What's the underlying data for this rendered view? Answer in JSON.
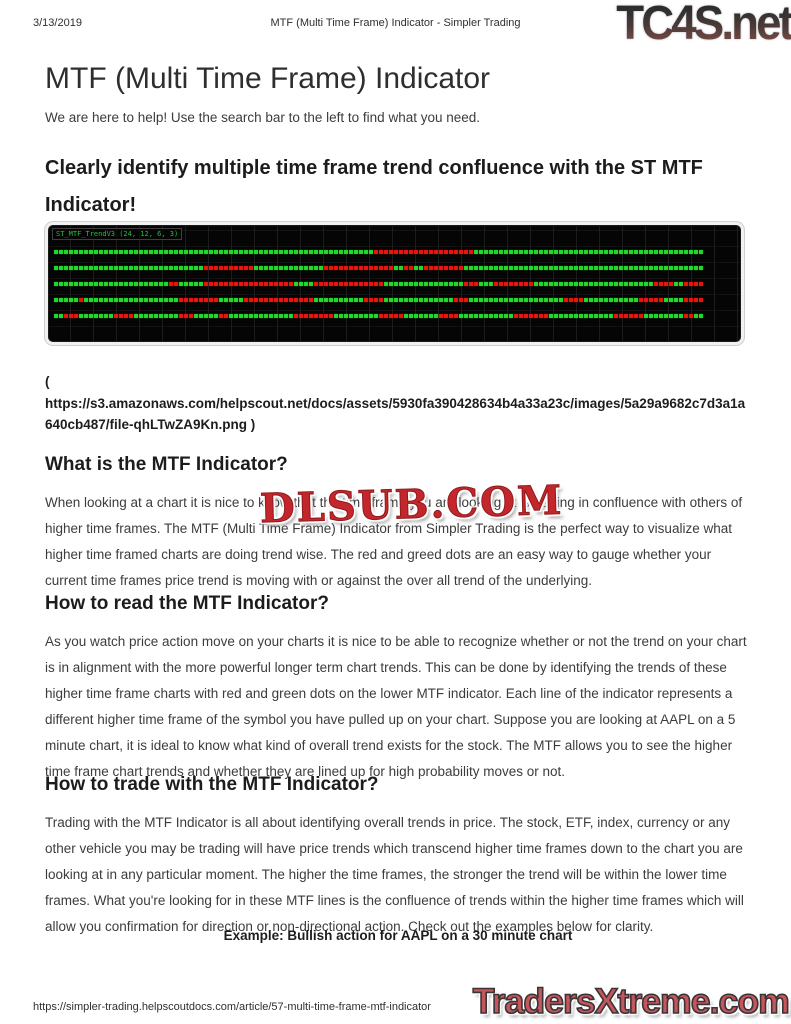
{
  "print_header": {
    "date": "3/13/2019",
    "doc_title": "MTF (Multi Time Frame) Indicator - Simpler Trading",
    "site_logo": "TC4S.net"
  },
  "article": {
    "title": "MTF (Multi Time Frame) Indicator",
    "intro": "We are here to help! Use the search bar to the left to find what you need.",
    "headline": "Clearly identify multiple time frame trend confluence with the ST MTF Indicator!",
    "image_link": {
      "line1": "(",
      "line2": "https://s3.amazonaws.com/helpscout.net/docs/assets/5930fa390428634b4a33a23c/images/5a29a9682c7d3a1a640cb487/file-qhLTwZA9Kn.png )"
    },
    "sections": [
      {
        "heading": "What is the MTF Indicator?",
        "body": "When looking at a chart it is nice to know that the time frame you are looking at is trading in confluence with others of higher time frames. The MTF (Multi Time Frame) Indicator from Simpler Trading is the perfect way to visualize what higher time framed charts are doing trend wise. The red and greed dots are an easy way to gauge whether your current time frames price trend is moving with or against the over all trend of the underlying."
      },
      {
        "heading": "How to read the MTF Indicator?",
        "body": "As you watch price action move on your charts it is nice to be able to recognize whether or not the trend on your chart is in alignment with the more powerful longer term chart trends. This can be done by identifying the trends of these higher time frame charts with red and green dots on the lower MTF indicator. Each line of the indicator represents a different higher time frame of the symbol you have pulled up on your chart. Suppose you are looking at AAPL on a 5 minute chart, it is ideal to know what kind of overall trend exists for the stock. The MTF allows you to see the higher time frame chart trends and whether they are lined up for high probability moves or not."
      },
      {
        "heading": "How to trade with the MTF Indicator?",
        "body": "Trading with the MTF Indicator is all about identifying overall trends in price. The stock, ETF, index, currency or any other vehicle you may be trading will have price trends which transcend higher time frames down to the chart you are looking at in any particular moment. The higher the time frames, the stronger the trend will be within the lower time frames. What you're looking for in these MTF lines is the confluence of trends within the higher time frames which will allow you confirmation for direction or non-directional action. Check out the examples below for clarity."
      }
    ],
    "example_caption": "Example: Bullish action for AAPL on a 30 minute chart"
  },
  "watermark": {
    "text": "DLSUB.COM",
    "color": "#c3262b"
  },
  "chart_data": {
    "type": "heatmap",
    "description": "MTF indicator panel: 5 stacked rows of trend dots on black, green = bullish trend, red = bearish trend, one row per higher time frame",
    "label": "ST_MTF_TrendV3 (24, 12, 6, 3)",
    "dot_colors": {
      "G": "#21d927",
      "R": "#e8150d"
    },
    "dots_per_row": 130,
    "rows": [
      "G64,R20,G46",
      "G30,R10,G14,R14,G2,R2,G2,R8,G48",
      "G23,R2,G5,R18,G4,R14,G16,R3,G3,R8,G24,R4,G2,R4",
      "G5,R1,G19,R8,G5,R14,G10,R4,G14,R3,G19,R4,G11,R5,G4,R4",
      "G2,R3,G7,R4,G9,R3,G5,R2,G13,R8,G9,R5,G7,R4,G11,R7,G13,R6,G8,R2,G2"
    ],
    "grid": true,
    "legend_position": "none"
  },
  "print_footer": {
    "url": "https://simpler-trading.helpscoutdocs.com/article/57-multi-time-frame-mtf-indicator",
    "site_logo": "TradersXtreme.com"
  }
}
